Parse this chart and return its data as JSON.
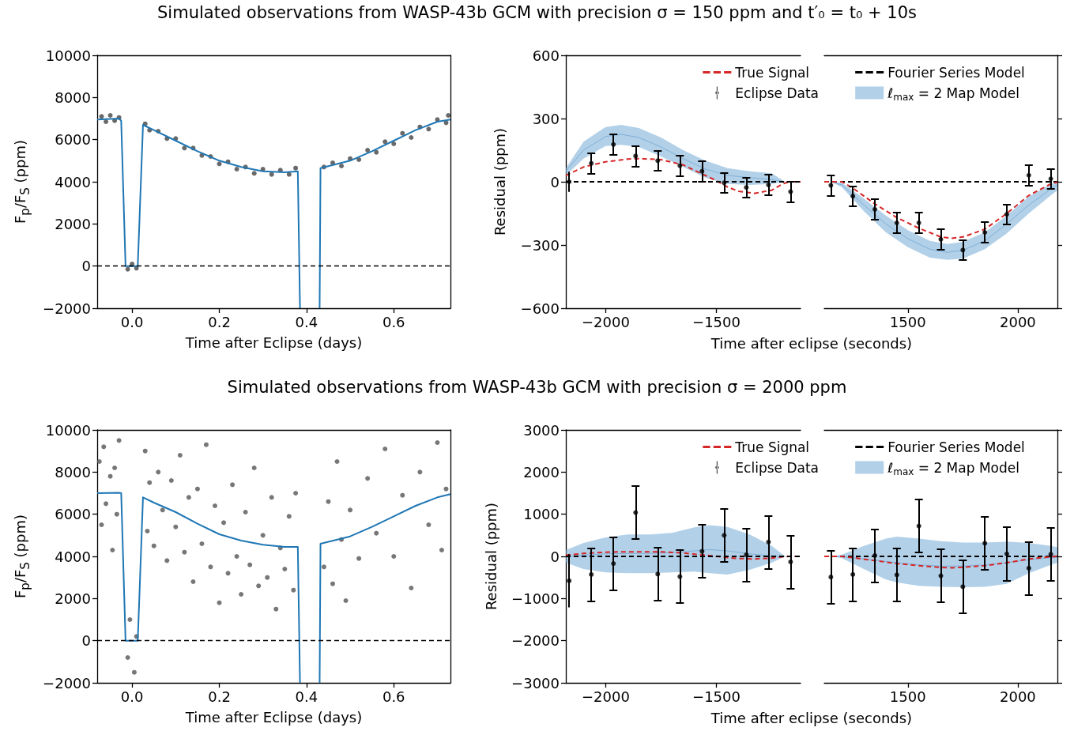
{
  "chart_data": [
    {
      "type": "line",
      "title": "Simulated observations from WASP-43b GCM with precision σ = 150 ppm and t′₀ = t₀ + 10s",
      "xlabel": "Time after Eclipse (days)",
      "ylabel": "F$_{p}$/F$_{S}$ (ppm)",
      "xlim": [
        -0.08,
        0.73
      ],
      "xticks": [
        {
          "value": 0,
          "label": "0.0"
        },
        0.2,
        0.4,
        0.6
      ],
      "ylim": [
        -2000,
        10000
      ],
      "yticks": [
        -2000,
        0,
        2000,
        4000,
        6000,
        8000,
        10000
      ],
      "ref_lines": [
        {
          "axis": "y",
          "value": 0,
          "color": "#000000",
          "line_style": "dashed"
        }
      ],
      "series": [
        {
          "type": "scatter",
          "marker": "circle",
          "color": "#444444",
          "x": [
            -0.07,
            -0.06,
            -0.05,
            -0.04,
            -0.03,
            -0.01,
            0.0,
            0.01,
            0.03,
            0.04,
            0.06,
            0.08,
            0.1,
            0.12,
            0.14,
            0.16,
            0.18,
            0.2,
            0.22,
            0.24,
            0.26,
            0.28,
            0.3,
            0.32,
            0.34,
            0.36,
            0.375,
            0.44,
            0.46,
            0.48,
            0.5,
            0.52,
            0.54,
            0.56,
            0.58,
            0.6,
            0.62,
            0.64,
            0.66,
            0.68,
            0.7,
            0.72,
            0.725
          ],
          "values": [
            7100,
            6850,
            7150,
            6900,
            7050,
            -150,
            100,
            -100,
            6750,
            6450,
            6400,
            6050,
            6050,
            5600,
            5600,
            5250,
            5200,
            4850,
            4950,
            4600,
            4700,
            4400,
            4600,
            4350,
            4550,
            4350,
            4650,
            4700,
            4900,
            4750,
            5100,
            5050,
            5500,
            5400,
            5900,
            5800,
            6300,
            6100,
            6600,
            6500,
            6950,
            6800,
            7150
          ]
        },
        {
          "color": "#1f77b4",
          "x": [
            -0.08,
            -0.03,
            -0.025,
            -0.015,
            0.013,
            0.025,
            0.05,
            0.1,
            0.15,
            0.2,
            0.25,
            0.3,
            0.35,
            0.38,
            0.385,
            0.405,
            0.43,
            0.432,
            0.5,
            0.55,
            0.6,
            0.65,
            0.7,
            0.73
          ],
          "values": [
            6950,
            7000,
            6900,
            0,
            0,
            6700,
            6450,
            5950,
            5450,
            5000,
            4700,
            4500,
            4450,
            4500,
            -2000,
            null,
            -2000,
            4650,
            5000,
            5450,
            5950,
            6450,
            6850,
            6950
          ]
        }
      ]
    },
    {
      "type": "line",
      "xlabel": "Time after eclipse (seconds)",
      "ylabel": "Residual (ppm)",
      "xlim": [
        -2180,
        -1120
      ],
      "xticks": [
        -2000,
        -1500
      ],
      "ylim": [
        -600,
        600
      ],
      "yticks": [
        -600,
        -300,
        0,
        300,
        600
      ],
      "legend": "top right",
      "series": [
        {
          "name": "True Signal",
          "line_style": "dashed",
          "color": "#d62728",
          "x": [
            -2180,
            -2100,
            -2000,
            -1900,
            -1850,
            -1750,
            -1650,
            -1550,
            -1500,
            -1450,
            -1400,
            -1330,
            -1250,
            -1200,
            -1170,
            -1120
          ],
          "values": [
            30,
            70,
            95,
            108,
            110,
            105,
            80,
            30,
            5,
            -25,
            -45,
            -55,
            -40,
            -10,
            0,
            0
          ]
        },
        {
          "name": "Eclipse Data",
          "type": "scatter",
          "marker": "circle",
          "color": "#000000",
          "x": [
            -2165,
            -2065,
            -1965,
            -1865,
            -1765,
            -1665,
            -1565,
            -1465,
            -1365,
            -1265,
            -1165
          ],
          "values": [
            0,
            88,
            177,
            122,
            100,
            76,
            50,
            -5,
            -27,
            -15,
            -47
          ],
          "errors": [
            48,
            48,
            48,
            48,
            48,
            48,
            48,
            48,
            48,
            48,
            48
          ]
        },
        {
          "color": "#7fb0d8",
          "x": [
            -2180,
            -2100,
            -2000,
            -1930,
            -1850,
            -1750,
            -1650,
            -1550,
            -1450,
            -1350,
            -1250,
            -1190
          ],
          "values": [
            50,
            150,
            215,
            225,
            210,
            165,
            110,
            60,
            30,
            20,
            10,
            0
          ],
          "lower": [
            30,
            110,
            170,
            175,
            165,
            120,
            70,
            20,
            -10,
            -15,
            -10,
            0
          ],
          "upper": [
            65,
            190,
            260,
            270,
            255,
            210,
            150,
            100,
            65,
            50,
            40,
            0
          ]
        },
        {
          "line_style": "dashed",
          "color": "#000000",
          "x": [
            -2180,
            -1120
          ],
          "values": [
            0,
            0
          ]
        }
      ]
    },
    {
      "type": "line",
      "xlim": [
        1120,
        2180
      ],
      "xticks": [
        1500,
        2000
      ],
      "ylim": [
        -600,
        600
      ],
      "yticks": [
        -600,
        -300,
        0,
        300,
        600
      ],
      "tick_labels": "x",
      "legend": "top",
      "series": [
        {
          "name": "Fourier Series Model",
          "line_style": "dashed",
          "color": "#000000",
          "x": [
            1120,
            2180
          ],
          "values": [
            0,
            0
          ]
        },
        {
          "name": "ℓ$_{max}$ = 2 Map Model",
          "color": "#7fb0d8",
          "x": [
            1150,
            1200,
            1300,
            1400,
            1500,
            1600,
            1680,
            1750,
            1850,
            1950,
            2050,
            2150,
            2180
          ],
          "values": [
            0,
            -15,
            -110,
            -200,
            -270,
            -320,
            -335,
            -325,
            -280,
            -200,
            -110,
            -35,
            -15
          ],
          "lower": [
            0,
            -25,
            -140,
            -240,
            -310,
            -360,
            -370,
            -365,
            -320,
            -245,
            -150,
            -65,
            -40
          ],
          "upper": [
            0,
            -5,
            -80,
            -160,
            -230,
            -280,
            -295,
            -285,
            -240,
            -160,
            -70,
            -10,
            0
          ]
        },
        {
          "line_style": "dashed",
          "color": "#d62728",
          "x": [
            1120,
            1200,
            1250,
            1350,
            1450,
            1550,
            1650,
            1700,
            1750,
            1850,
            1950,
            2050,
            2150,
            2180
          ],
          "values": [
            0,
            0,
            -30,
            -105,
            -170,
            -220,
            -262,
            -268,
            -262,
            -225,
            -150,
            -65,
            -10,
            -2
          ]
        },
        {
          "type": "scatter",
          "marker": "circle",
          "color": "#000000",
          "x": [
            1150,
            1250,
            1350,
            1450,
            1550,
            1650,
            1750,
            1850,
            1950,
            2050,
            2150
          ],
          "values": [
            -17,
            -68,
            -131,
            -195,
            -195,
            -273,
            -324,
            -240,
            -154,
            31,
            14
          ],
          "errors": [
            48,
            48,
            48,
            48,
            48,
            48,
            48,
            48,
            48,
            48,
            48
          ]
        }
      ]
    },
    {
      "type": "line",
      "title": "Simulated observations from WASP-43b GCM with precision σ = 2000 ppm",
      "xlabel": "Time after Eclipse (days)",
      "ylabel": "F$_{p}$/F$_{S}$ (ppm)",
      "xlim": [
        -0.08,
        0.73
      ],
      "xticks": [
        {
          "value": 0,
          "label": "0.0"
        },
        0.2,
        0.4,
        0.6
      ],
      "ylim": [
        -2000,
        10000
      ],
      "yticks": [
        -2000,
        0,
        2000,
        4000,
        6000,
        8000,
        10000
      ],
      "ref_lines": [
        {
          "axis": "y",
          "value": 0,
          "color": "#000000",
          "line_style": "dashed"
        }
      ],
      "series": [
        {
          "type": "scatter",
          "marker": "circle",
          "color": "#555555",
          "x": [
            -0.075,
            -0.07,
            -0.065,
            -0.06,
            -0.05,
            -0.045,
            -0.04,
            -0.035,
            -0.03,
            -0.01,
            -0.005,
            0.005,
            0.01,
            0.03,
            0.035,
            0.04,
            0.05,
            0.06,
            0.07,
            0.08,
            0.09,
            0.1,
            0.11,
            0.12,
            0.13,
            0.14,
            0.15,
            0.16,
            0.17,
            0.18,
            0.19,
            0.2,
            0.21,
            0.22,
            0.23,
            0.24,
            0.25,
            0.26,
            0.27,
            0.28,
            0.29,
            0.3,
            0.31,
            0.32,
            0.33,
            0.34,
            0.35,
            0.36,
            0.37,
            0.375,
            0.44,
            0.45,
            0.46,
            0.47,
            0.48,
            0.49,
            0.5,
            0.52,
            0.54,
            0.56,
            0.58,
            0.6,
            0.62,
            0.64,
            0.66,
            0.68,
            0.7,
            0.71,
            0.72
          ],
          "values": [
            8500,
            5500,
            9200,
            6500,
            7800,
            4300,
            8200,
            6000,
            9500,
            -800,
            1000,
            -1500,
            200,
            9000,
            5200,
            7500,
            4500,
            8000,
            6200,
            3800,
            7600,
            5400,
            8800,
            4200,
            6800,
            2800,
            7200,
            4600,
            9300,
            3500,
            6400,
            1800,
            5600,
            3200,
            7400,
            4000,
            2200,
            6100,
            3600,
            8200,
            2600,
            5000,
            3000,
            6800,
            1500,
            4400,
            3400,
            5900,
            2400,
            7000,
            3500,
            6600,
            2700,
            8500,
            4800,
            1900,
            6200,
            3900,
            7700,
            5100,
            9100,
            4000,
            6900,
            2500,
            8000,
            5500,
            9400,
            4300,
            7200
          ]
        },
        {
          "color": "#1f77b4",
          "x": [
            -0.08,
            -0.03,
            -0.025,
            -0.015,
            0.013,
            0.025,
            0.05,
            0.1,
            0.15,
            0.2,
            0.25,
            0.3,
            0.35,
            0.38,
            0.385,
            0.405,
            0.43,
            0.432,
            0.5,
            0.55,
            0.6,
            0.65,
            0.7,
            0.73
          ],
          "values": [
            7000,
            7020,
            7000,
            0,
            0,
            6800,
            6550,
            6100,
            5550,
            5050,
            4750,
            4550,
            4450,
            4450,
            -2000,
            null,
            -2000,
            4600,
            4950,
            5400,
            5900,
            6400,
            6800,
            6950
          ]
        }
      ]
    },
    {
      "type": "line",
      "xlabel": "Time after eclipse (seconds)",
      "ylabel": "Residual (ppm)",
      "xlim": [
        -2180,
        -1120
      ],
      "xticks": [
        -2000,
        -1500
      ],
      "ylim": [
        -3000,
        3000
      ],
      "yticks": [
        -3000,
        -2000,
        -1000,
        0,
        1000,
        2000,
        3000
      ],
      "legend": "top right",
      "series": [
        {
          "name": "True Signal",
          "line_style": "dashed",
          "color": "#d62728",
          "x": [
            -2180,
            -2100,
            -2000,
            -1900,
            -1850,
            -1750,
            -1650,
            -1550,
            -1500,
            -1450,
            -1400,
            -1330,
            -1250,
            -1200,
            -1170,
            -1120
          ],
          "values": [
            30,
            70,
            100,
            110,
            110,
            110,
            80,
            30,
            0,
            -30,
            -50,
            -60,
            -40,
            -10,
            0,
            0
          ]
        },
        {
          "name": "Eclipse Data",
          "type": "scatter",
          "marker": "circle",
          "color": "#000000",
          "x": [
            -2165,
            -2065,
            -1965,
            -1865,
            -1765,
            -1665,
            -1565,
            -1465,
            -1365,
            -1265,
            -1165
          ],
          "values": [
            -580,
            -430,
            -170,
            1040,
            -420,
            -480,
            120,
            500,
            40,
            340,
            -130
          ],
          "errors": [
            630,
            630,
            630,
            630,
            630,
            630,
            630,
            630,
            630,
            630,
            630
          ]
        },
        {
          "color": "#7fb0d8",
          "x": [
            -2180,
            -2100,
            -2000,
            -1900,
            -1800,
            -1700,
            -1600,
            -1530,
            -1450,
            -1350,
            -1250,
            -1190
          ],
          "values": [
            0,
            30,
            60,
            70,
            70,
            90,
            130,
            160,
            130,
            60,
            10,
            0
          ],
          "lower": [
            -150,
            -300,
            -380,
            -400,
            -400,
            -380,
            -360,
            -400,
            -430,
            -320,
            -150,
            0
          ],
          "upper": [
            150,
            320,
            450,
            520,
            520,
            560,
            690,
            740,
            700,
            520,
            250,
            0
          ]
        },
        {
          "line_style": "dashed",
          "color": "#000000",
          "x": [
            -2180,
            -1120
          ],
          "values": [
            0,
            0
          ]
        }
      ]
    },
    {
      "type": "line",
      "xlim": [
        1120,
        2180
      ],
      "xticks": [
        1500,
        2000
      ],
      "ylim": [
        -3000,
        3000
      ],
      "yticks": [
        -3000,
        -2000,
        -1000,
        0,
        1000,
        2000,
        3000
      ],
      "tick_labels": "x",
      "legend": "top",
      "series": [
        {
          "name": "Fourier Series Model",
          "line_style": "dashed",
          "color": "#000000",
          "x": [
            1120,
            2180
          ],
          "values": [
            0,
            0
          ]
        },
        {
          "name": "ℓ$_{max}$ = 2 Map Model",
          "color": "#7fb0d8",
          "x": [
            1150,
            1200,
            1300,
            1400,
            1450,
            1550,
            1650,
            1750,
            1850,
            1950,
            2050,
            2150,
            2180
          ],
          "values": [
            0,
            -10,
            -60,
            -120,
            -150,
            -200,
            -230,
            -230,
            -200,
            -150,
            -80,
            -30,
            -20
          ],
          "lower": [
            0,
            -40,
            -300,
            -550,
            -620,
            -700,
            -720,
            -730,
            -720,
            -650,
            -400,
            -200,
            -150
          ],
          "upper": [
            0,
            40,
            250,
            420,
            470,
            420,
            360,
            330,
            330,
            350,
            320,
            250,
            220
          ]
        },
        {
          "line_style": "dashed",
          "color": "#d62728",
          "x": [
            1120,
            1200,
            1250,
            1350,
            1450,
            1550,
            1650,
            1700,
            1750,
            1850,
            1950,
            2050,
            2150,
            2180
          ],
          "values": [
            0,
            0,
            -30,
            -100,
            -170,
            -220,
            -260,
            -270,
            -260,
            -220,
            -150,
            -60,
            -10,
            0
          ]
        },
        {
          "type": "scatter",
          "marker": "circle",
          "color": "#000000",
          "x": [
            1150,
            1250,
            1350,
            1450,
            1550,
            1650,
            1750,
            1850,
            1950,
            2050,
            2150
          ],
          "values": [
            -490,
            -430,
            20,
            -440,
            720,
            -460,
            -720,
            310,
            60,
            -280,
            50
          ],
          "errors": [
            630,
            630,
            630,
            630,
            630,
            630,
            630,
            630,
            630,
            630,
            630
          ]
        }
      ]
    }
  ]
}
